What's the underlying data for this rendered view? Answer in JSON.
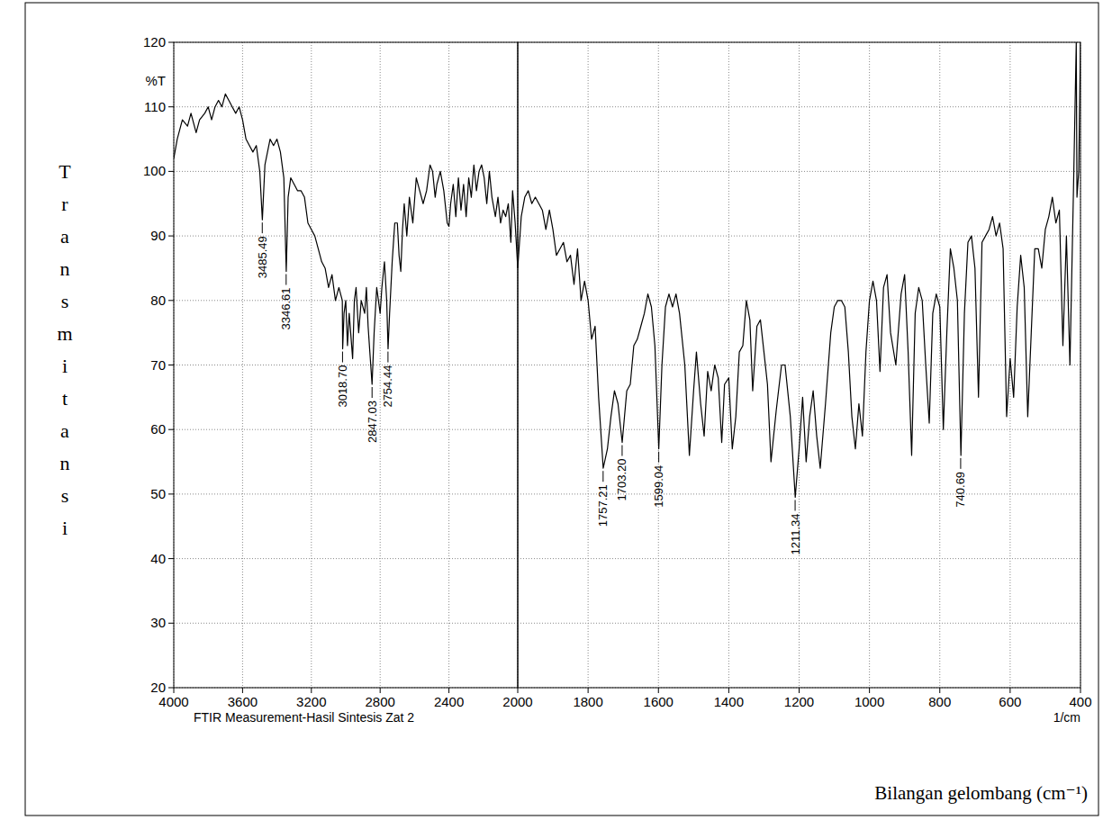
{
  "chart_data": [
    {
      "type": "line",
      "y_label": "%T",
      "y_title": "Transmitansi",
      "x_label": "FTIR Measurement-Hasil Sintesis Zat 2",
      "xlim": [
        4000,
        2000
      ],
      "ylim": [
        20,
        120
      ],
      "xticks": [
        4000,
        3600,
        3200,
        2800,
        2400,
        2000
      ],
      "yticks": [
        20,
        30,
        40,
        50,
        60,
        70,
        80,
        90,
        100,
        110,
        120
      ],
      "grid": true,
      "tick_labels": true,
      "color": "#000000",
      "x": [
        4000,
        3980,
        3950,
        3920,
        3900,
        3870,
        3850,
        3820,
        3800,
        3780,
        3760,
        3740,
        3720,
        3700,
        3680,
        3660,
        3640,
        3620,
        3600,
        3580,
        3560,
        3540,
        3520,
        3500,
        3485,
        3470,
        3440,
        3420,
        3400,
        3380,
        3360,
        3346,
        3335,
        3320,
        3300,
        3280,
        3260,
        3240,
        3220,
        3200,
        3180,
        3160,
        3140,
        3120,
        3100,
        3080,
        3060,
        3040,
        3020,
        3018,
        3010,
        3000,
        2990,
        2980,
        2960,
        2950,
        2940,
        2925,
        2910,
        2890,
        2880,
        2870,
        2860,
        2847,
        2835,
        2820,
        2800,
        2790,
        2775,
        2762,
        2754,
        2745,
        2730,
        2715,
        2700,
        2690,
        2680,
        2670,
        2660,
        2645,
        2630,
        2610,
        2590,
        2570,
        2550,
        2530,
        2510,
        2495,
        2480,
        2470,
        2450,
        2430,
        2410,
        2400,
        2390,
        2375,
        2360,
        2345,
        2330,
        2315,
        2300,
        2285,
        2270,
        2255,
        2240,
        2225,
        2210,
        2195,
        2180,
        2165,
        2150,
        2130,
        2115,
        2100,
        2085,
        2070,
        2055,
        2040,
        2030,
        2015,
        2000
      ],
      "values": [
        102,
        105,
        108,
        107,
        109,
        106,
        108,
        109,
        110,
        108,
        110,
        111,
        110,
        112,
        111,
        110,
        109,
        110,
        108,
        105,
        104,
        103,
        104,
        100,
        92.5,
        101,
        105,
        104,
        105,
        103,
        99,
        84.5,
        96,
        99,
        98,
        97,
        97,
        96,
        92,
        91,
        90,
        88,
        86,
        85,
        82,
        84,
        80,
        82,
        80,
        72.5,
        78,
        80,
        73,
        78,
        71,
        80,
        82,
        75,
        80,
        78,
        82,
        76,
        72,
        67,
        75,
        82,
        78,
        82,
        86,
        80,
        72.5,
        78,
        86,
        92,
        92,
        87,
        84.5,
        91,
        95,
        90,
        96,
        92,
        99,
        97,
        95,
        97,
        101,
        100,
        96,
        98,
        100,
        97,
        92,
        91.5,
        95,
        98,
        93,
        99,
        94,
        98,
        93,
        99,
        96,
        101,
        97,
        100,
        101,
        99,
        95,
        100,
        96,
        93,
        96,
        92,
        94,
        93,
        95,
        89,
        97,
        92,
        85
      ],
      "annotations": [
        {
          "x": 3485.49,
          "y": 92.5,
          "label": "3485.49"
        },
        {
          "x": 3346.61,
          "y": 84.5,
          "label": "3346.61"
        },
        {
          "x": 3018.7,
          "y": 72.5,
          "label": "3018.70"
        },
        {
          "x": 2847.03,
          "y": 67,
          "label": "2847.03"
        },
        {
          "x": 2754.44,
          "y": 72.5,
          "label": "2754.44"
        }
      ]
    },
    {
      "type": "line",
      "x_unit": "1/cm",
      "x_title": "Bilangan gelombang (cm⁻¹)",
      "xlim": [
        2000,
        400
      ],
      "ylim": [
        20,
        120
      ],
      "xticks": [
        1800,
        1600,
        1400,
        1200,
        1000,
        800,
        600,
        400
      ],
      "yticks": [
        20,
        30,
        40,
        50,
        60,
        70,
        80,
        90,
        100,
        110,
        120
      ],
      "grid": true,
      "tick_labels": "x",
      "color": "#000000",
      "x": [
        2000,
        1990,
        1980,
        1970,
        1960,
        1950,
        1940,
        1930,
        1920,
        1910,
        1900,
        1890,
        1880,
        1870,
        1860,
        1850,
        1840,
        1830,
        1820,
        1810,
        1800,
        1790,
        1780,
        1770,
        1757,
        1745,
        1735,
        1725,
        1715,
        1703,
        1690,
        1680,
        1670,
        1660,
        1650,
        1640,
        1630,
        1620,
        1610,
        1599,
        1590,
        1580,
        1570,
        1560,
        1550,
        1540,
        1525,
        1512,
        1500,
        1492,
        1480,
        1470,
        1460,
        1450,
        1440,
        1430,
        1420,
        1412,
        1400,
        1390,
        1380,
        1370,
        1360,
        1350,
        1340,
        1332,
        1320,
        1310,
        1300,
        1290,
        1280,
        1265,
        1250,
        1240,
        1225,
        1211,
        1200,
        1190,
        1180,
        1170,
        1160,
        1150,
        1140,
        1125,
        1110,
        1100,
        1090,
        1080,
        1070,
        1060,
        1050,
        1040,
        1030,
        1020,
        1010,
        1000,
        990,
        980,
        970,
        960,
        950,
        940,
        925,
        910,
        900,
        890,
        880,
        870,
        860,
        850,
        840,
        830,
        820,
        810,
        800,
        790,
        780,
        770,
        760,
        750,
        740,
        730,
        720,
        710,
        700,
        690,
        680,
        670,
        660,
        650,
        640,
        630,
        620,
        610,
        600,
        590,
        580,
        570,
        560,
        550,
        540,
        530,
        520,
        510,
        500,
        490,
        480,
        470,
        460,
        450,
        440,
        430,
        420,
        412,
        410,
        405,
        400
      ],
      "values": [
        85,
        93,
        96,
        97,
        95,
        96,
        95,
        94,
        91,
        94,
        91,
        87,
        88,
        89,
        86,
        87,
        82.5,
        88,
        80,
        83,
        80,
        74,
        76,
        65,
        54,
        57,
        62,
        66,
        64,
        58,
        66,
        67,
        73,
        74,
        76,
        78,
        81,
        79,
        73,
        57,
        70,
        79,
        81,
        79,
        81,
        78,
        70,
        56,
        66,
        72,
        64,
        59,
        69,
        66,
        70,
        68,
        58,
        67,
        68,
        57,
        62,
        72,
        73,
        80,
        77,
        66,
        76,
        77,
        72,
        67,
        55,
        63,
        70,
        70,
        62,
        49.5,
        57,
        65,
        55,
        62,
        66,
        59,
        54,
        64,
        75,
        79,
        80,
        80,
        79,
        72,
        62,
        57,
        64,
        59,
        72,
        80,
        83,
        80,
        69,
        82,
        84,
        75,
        70,
        81,
        84,
        72,
        56,
        78,
        82,
        80,
        70,
        61,
        78,
        81,
        79,
        60,
        75,
        88,
        85,
        80,
        56,
        78,
        89,
        90,
        85,
        65,
        89,
        90,
        91,
        93,
        90,
        92,
        88,
        62,
        71,
        65,
        79,
        87,
        82,
        62,
        75,
        88,
        88,
        85,
        91,
        93,
        96,
        92,
        94,
        73,
        90,
        70,
        97,
        120,
        96,
        100,
        120
      ],
      "annotations": [
        {
          "x": 1757.21,
          "y": 54,
          "label": "1757.21"
        },
        {
          "x": 1703.2,
          "y": 58,
          "label": "1703.20"
        },
        {
          "x": 1599.04,
          "y": 57,
          "label": "1599.04"
        },
        {
          "x": 1211.34,
          "y": 49.5,
          "label": "1211.34"
        },
        {
          "x": 740.69,
          "y": 56,
          "label": "740.69"
        }
      ]
    }
  ]
}
